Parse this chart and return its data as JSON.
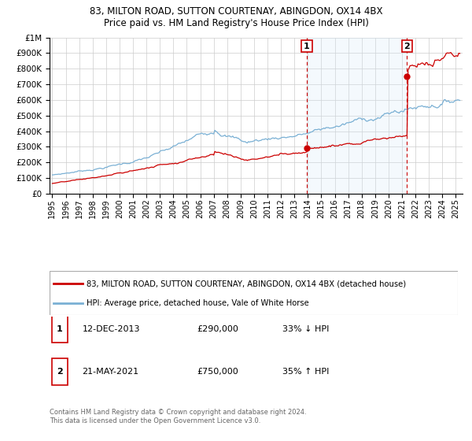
{
  "title1": "83, MILTON ROAD, SUTTON COURTENAY, ABINGDON, OX14 4BX",
  "title2": "Price paid vs. HM Land Registry's House Price Index (HPI)",
  "legend_line1": "83, MILTON ROAD, SUTTON COURTENAY, ABINGDON, OX14 4BX (detached house)",
  "legend_line2": "HPI: Average price, detached house, Vale of White Horse",
  "annotation1_label": "1",
  "annotation1_date": "12-DEC-2013",
  "annotation1_price": "£290,000",
  "annotation1_hpi": "33% ↓ HPI",
  "annotation2_label": "2",
  "annotation2_date": "21-MAY-2021",
  "annotation2_price": "£750,000",
  "annotation2_hpi": "35% ↑ HPI",
  "footer": "Contains HM Land Registry data © Crown copyright and database right 2024.\nThis data is licensed under the Open Government Licence v3.0.",
  "hpi_color": "#7ab0d4",
  "property_color": "#cc0000",
  "vline_color": "#cc0000",
  "annotation_box_color": "#cc0000",
  "shade_color": "#d6eaf8",
  "ylim_min": 0,
  "ylim_max": 1000000,
  "xlabel_start_year": 1995,
  "xlabel_end_year": 2025,
  "sale1_year": 2013.92,
  "sale2_year": 2021.37,
  "sale1_value": 290000,
  "sale2_value": 750000
}
